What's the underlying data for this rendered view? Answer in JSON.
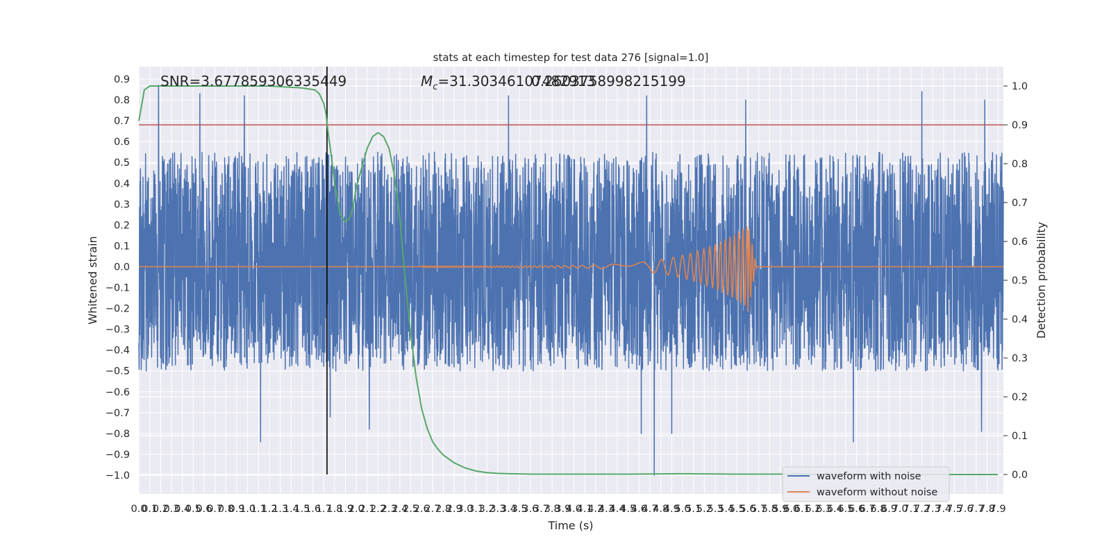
{
  "chart_data": {
    "type": "line",
    "title": "stats at each timestep for test data 276 [signal=1.0]",
    "xlabel": "Time (s)",
    "ylabel_left": "Whitened strain",
    "ylabel_right": "Detection probability",
    "xlim": [
      0.0,
      7.95
    ],
    "ylim_left": [
      -1.09,
      0.96
    ],
    "ylim_right": [
      -0.05,
      1.05
    ],
    "x_ticks": [
      0.0,
      0.1,
      0.2,
      0.3,
      0.4,
      0.5,
      0.6,
      0.7,
      0.8,
      0.9,
      1.0,
      1.1,
      1.2,
      1.3,
      1.4,
      1.5,
      1.6,
      1.7,
      1.8,
      1.9,
      2.0,
      2.1,
      2.2,
      2.3,
      2.4,
      2.5,
      2.6,
      2.7,
      2.8,
      2.9,
      3.0,
      3.1,
      3.2,
      3.3,
      3.4,
      3.5,
      3.6,
      3.7,
      3.8,
      3.9,
      4.0,
      4.1,
      4.2,
      4.3,
      4.4,
      4.5,
      4.6,
      4.7,
      4.8,
      4.9,
      5.0,
      5.1,
      5.2,
      5.3,
      5.4,
      5.5,
      5.6,
      5.7,
      5.8,
      5.9,
      6.0,
      6.1,
      6.2,
      6.3,
      6.4,
      6.5,
      6.6,
      6.7,
      6.8,
      6.9,
      7.0,
      7.1,
      7.2,
      7.3,
      7.4,
      7.5,
      7.6,
      7.7,
      7.8,
      7.9
    ],
    "y_ticks_left": [
      -1.0,
      -0.9,
      -0.8,
      -0.7,
      -0.6,
      -0.5,
      -0.4,
      -0.3,
      -0.2,
      -0.1,
      0.0,
      0.1,
      0.2,
      0.3,
      0.4,
      0.5,
      0.6,
      0.7,
      0.8,
      0.9
    ],
    "y_ticks_right": [
      0.0,
      0.1,
      0.2,
      0.3,
      0.4,
      0.5,
      0.6,
      0.7,
      0.8,
      0.9,
      1.0
    ],
    "threshold_right": 0.9,
    "marker_time": 1.73,
    "annotations": {
      "snr": "SNR=3.677859306335449",
      "mc_text": "=31.30346107482913",
      "mc_math": "M",
      "mc_sub": "c",
      "overlap_text": "0.2603758998215199"
    },
    "legend": {
      "placement": "lower right",
      "entries": [
        "waveform with noise",
        "waveform without noise"
      ]
    },
    "colors": {
      "noise": "#4c72b0",
      "clean": "#dd8452",
      "prob": "#55a868",
      "threshold": "#c44e52",
      "marker": "#000000",
      "background": "#eaeaf2"
    },
    "noise_envelope": {
      "typical_max": 0.55,
      "typical_min": -0.5,
      "core_half_width": 0.3
    },
    "noise_extreme_max": [
      [
        0.18,
        0.87
      ],
      [
        0.56,
        0.83
      ],
      [
        0.97,
        0.82
      ],
      [
        3.4,
        0.82
      ],
      [
        4.67,
        0.82
      ],
      [
        5.58,
        0.8
      ],
      [
        7.2,
        0.84
      ],
      [
        7.78,
        0.8
      ]
    ],
    "noise_extreme_min": [
      [
        1.12,
        -0.84
      ],
      [
        1.76,
        -0.72
      ],
      [
        2.12,
        -0.78
      ],
      [
        4.62,
        -0.8
      ],
      [
        4.74,
        -1.0
      ],
      [
        4.9,
        -0.8
      ],
      [
        6.57,
        -0.84
      ],
      [
        7.75,
        -0.79
      ]
    ],
    "clean_waveform": {
      "t_start": 2.6,
      "t_merger": 5.6,
      "t_ringdown_end": 5.68,
      "amp_start": 0.004,
      "amp_peak_pos": 0.2,
      "amp_peak_neg": -0.22,
      "cycles_start": 48,
      "cycles_end": 10
    },
    "series": [
      {
        "name": "detection probability",
        "axis": "right",
        "x": [
          0.0,
          0.05,
          0.1,
          0.2,
          0.3,
          0.5,
          0.8,
          1.2,
          1.5,
          1.62,
          1.66,
          1.7,
          1.72,
          1.74,
          1.77,
          1.8,
          1.85,
          1.9,
          1.94,
          1.97,
          2.0,
          2.05,
          2.1,
          2.15,
          2.2,
          2.25,
          2.3,
          2.35,
          2.4,
          2.45,
          2.5,
          2.55,
          2.6,
          2.65,
          2.7,
          2.75,
          2.8,
          2.9,
          3.0,
          3.1,
          3.2,
          3.3,
          3.4,
          3.6,
          4.0,
          4.5,
          5.0,
          5.5,
          6.0,
          6.5,
          7.0,
          7.5,
          7.9
        ],
        "y": [
          0.91,
          0.99,
          1.0,
          1.0,
          1.0,
          1.0,
          1.0,
          1.0,
          0.995,
          0.99,
          0.98,
          0.955,
          0.93,
          0.88,
          0.82,
          0.75,
          0.67,
          0.65,
          0.66,
          0.69,
          0.74,
          0.79,
          0.84,
          0.87,
          0.88,
          0.87,
          0.84,
          0.77,
          0.66,
          0.5,
          0.36,
          0.25,
          0.17,
          0.12,
          0.085,
          0.065,
          0.05,
          0.03,
          0.017,
          0.009,
          0.005,
          0.003,
          0.002,
          0.001,
          0.001,
          0.001,
          0.002,
          0.001,
          0.001,
          0.0,
          0.0,
          0.0,
          0.0
        ]
      }
    ]
  }
}
